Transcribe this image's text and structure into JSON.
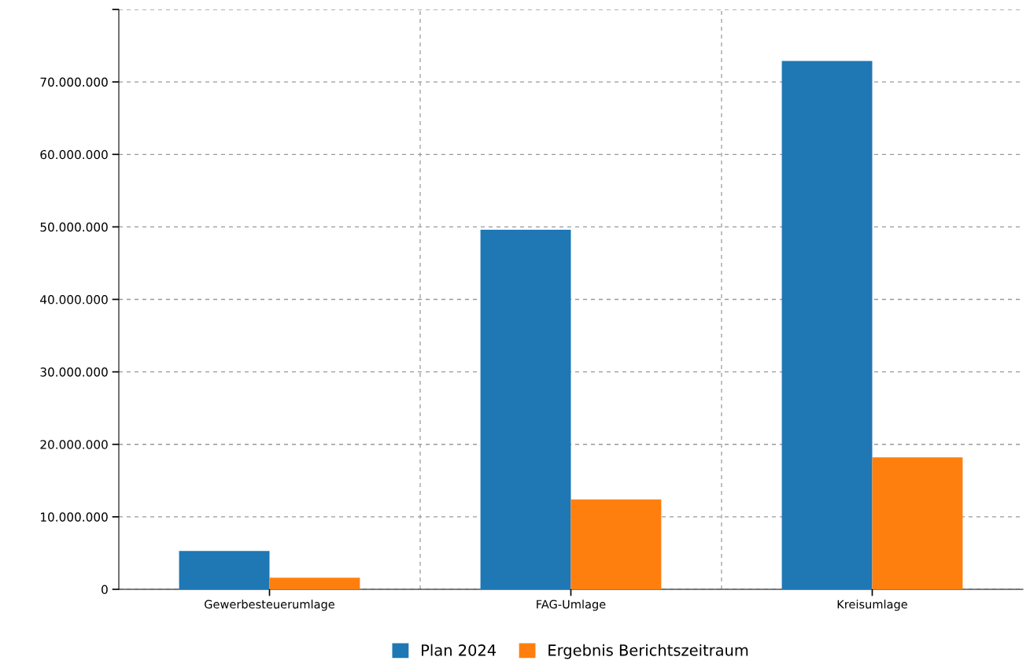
{
  "chart_data": {
    "type": "bar",
    "categories": [
      "Gewerbesteuerumlage",
      "FAG-Umlage",
      "Kreisumlage"
    ],
    "series": [
      {
        "name": "Plan 2024",
        "color": "#1f77b4",
        "values": [
          5300000,
          49600000,
          72900000
        ]
      },
      {
        "name": "Ergebnis Berichtszeitraum",
        "color": "#ff7f0e",
        "values": [
          1600000,
          12400000,
          18200000
        ]
      }
    ],
    "ylim": [
      0,
      80000000
    ],
    "yticks": [
      {
        "value": 0,
        "label": "0"
      },
      {
        "value": 10000000,
        "label": "10.000.000"
      },
      {
        "value": 20000000,
        "label": "20.000.000"
      },
      {
        "value": 30000000,
        "label": "30.000.000"
      },
      {
        "value": 40000000,
        "label": "40.000.000"
      },
      {
        "value": 50000000,
        "label": "50.000.000"
      },
      {
        "value": 60000000,
        "label": "60.000.000"
      },
      {
        "value": 70000000,
        "label": "70.000.000"
      },
      {
        "value": 80000000,
        "label": null
      }
    ],
    "grid": true,
    "legend": "bottom"
  }
}
